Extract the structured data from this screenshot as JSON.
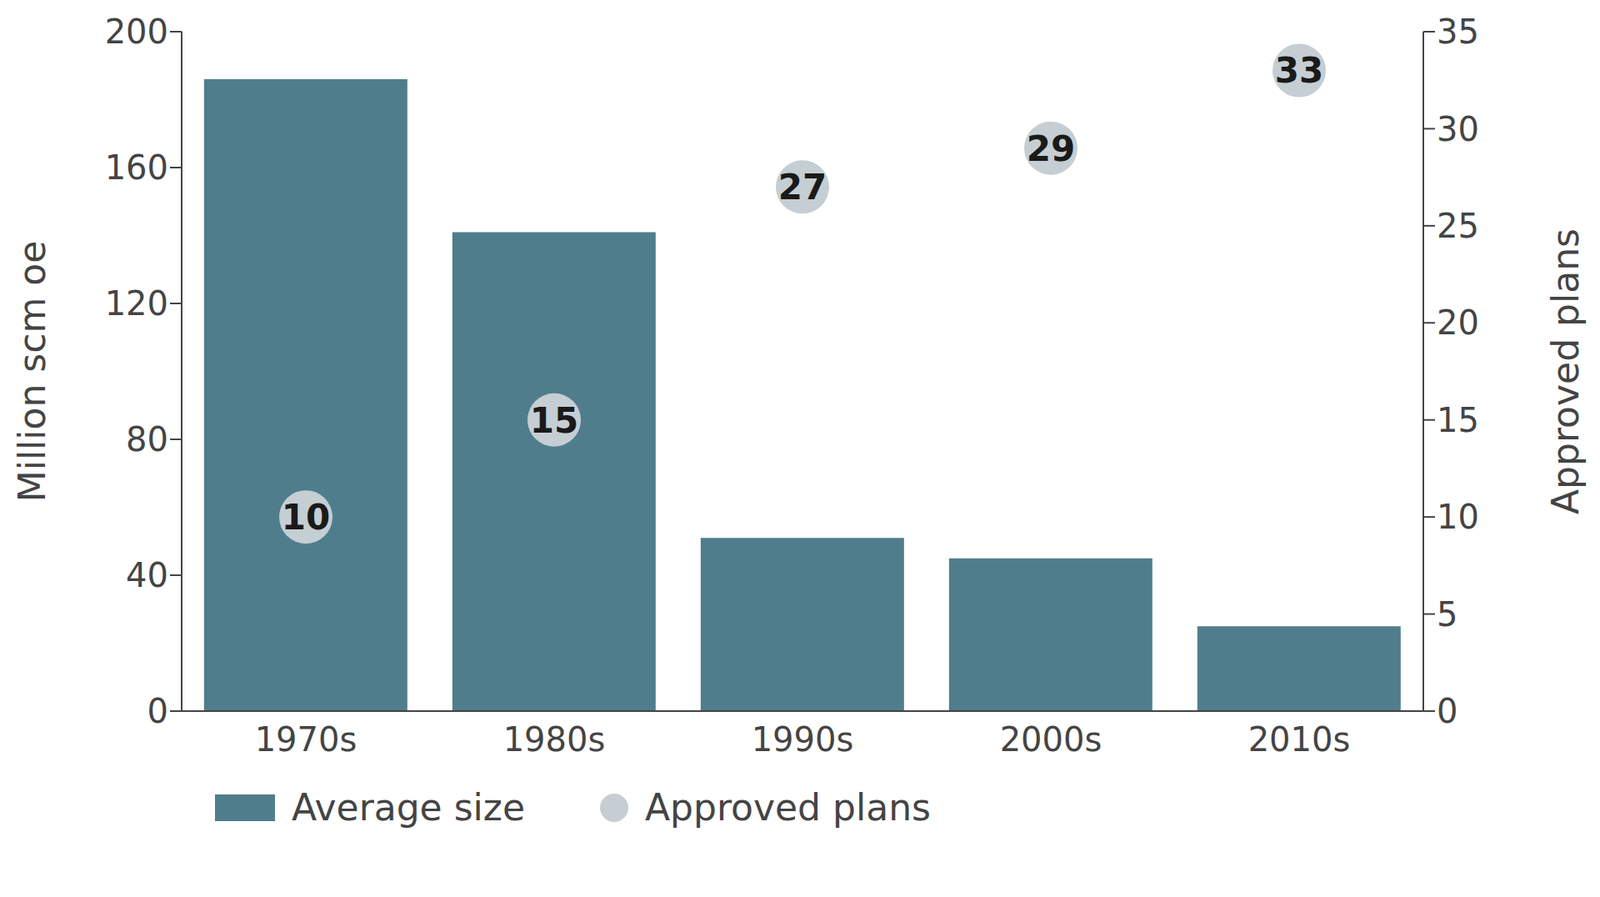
{
  "chart_data": {
    "type": "bar",
    "categories": [
      "1970s",
      "1980s",
      "1990s",
      "2000s",
      "2010s"
    ],
    "series": [
      {
        "name": "Average size",
        "type": "bar",
        "color": "#507d8c",
        "values": [
          186,
          141,
          51,
          45,
          25
        ]
      },
      {
        "name": "Approved plans",
        "type": "scatter",
        "axis": "y2",
        "color": "#c5ced3",
        "values": [
          10,
          15,
          27,
          29,
          33
        ],
        "data_labels": true
      }
    ],
    "ylabel": "Million scm oe",
    "y2label": "Approved plans",
    "ylim": [
      0,
      200
    ],
    "yticks": [
      0,
      40,
      80,
      120,
      160,
      200
    ],
    "y2lim": [
      0,
      35
    ],
    "y2ticks": [
      0,
      5,
      10,
      15,
      20,
      25,
      30,
      35
    ],
    "legend": "bottom",
    "grid": false
  }
}
